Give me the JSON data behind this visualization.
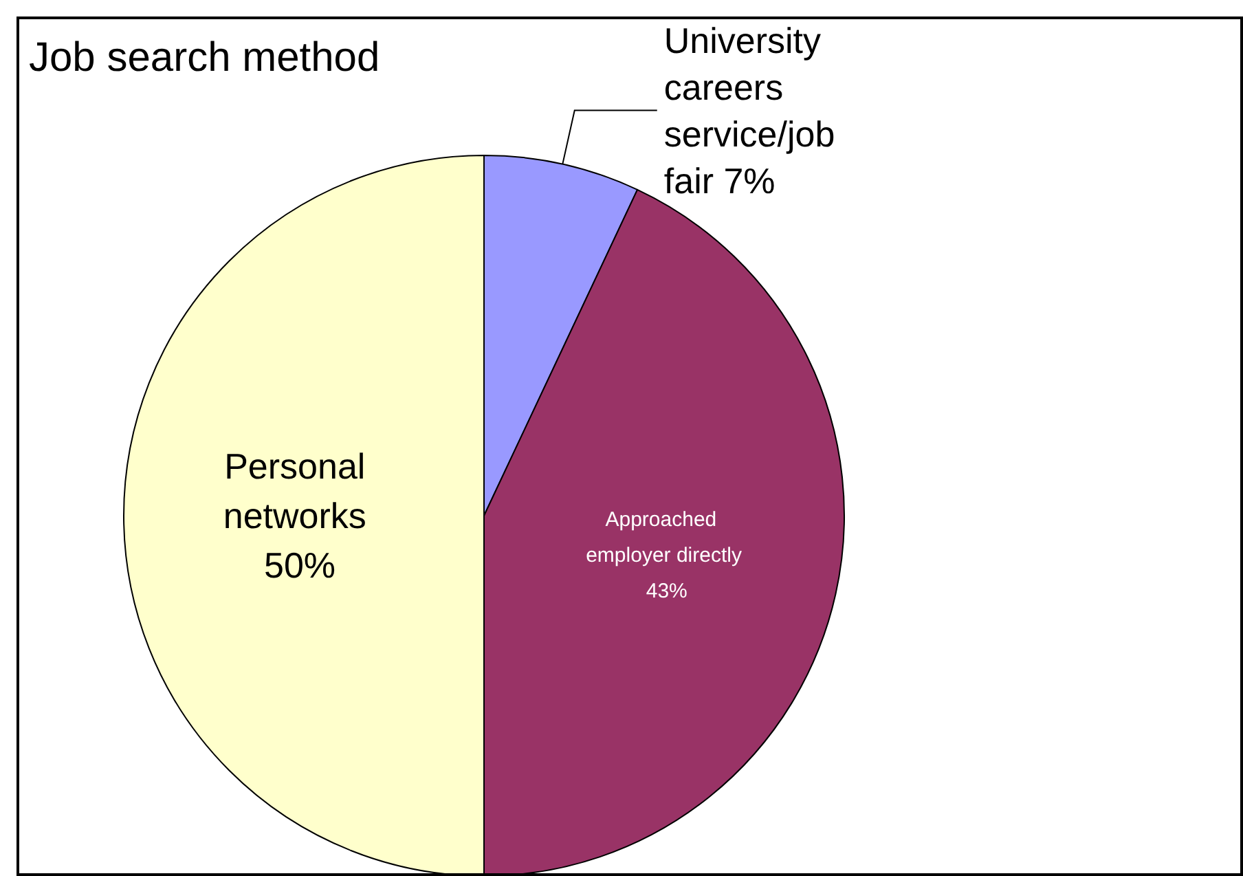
{
  "chart_data": {
    "type": "pie",
    "title": "Job search method",
    "categories": [
      "University careers service/job fair",
      "Approached employer directly",
      "Personal networks"
    ],
    "values": [
      7,
      43,
      50
    ],
    "colors": [
      "#9999ff",
      "#993366",
      "#ffffcc"
    ],
    "value_labels": [
      "7%",
      "43%",
      "50%"
    ],
    "legend": false
  }
}
